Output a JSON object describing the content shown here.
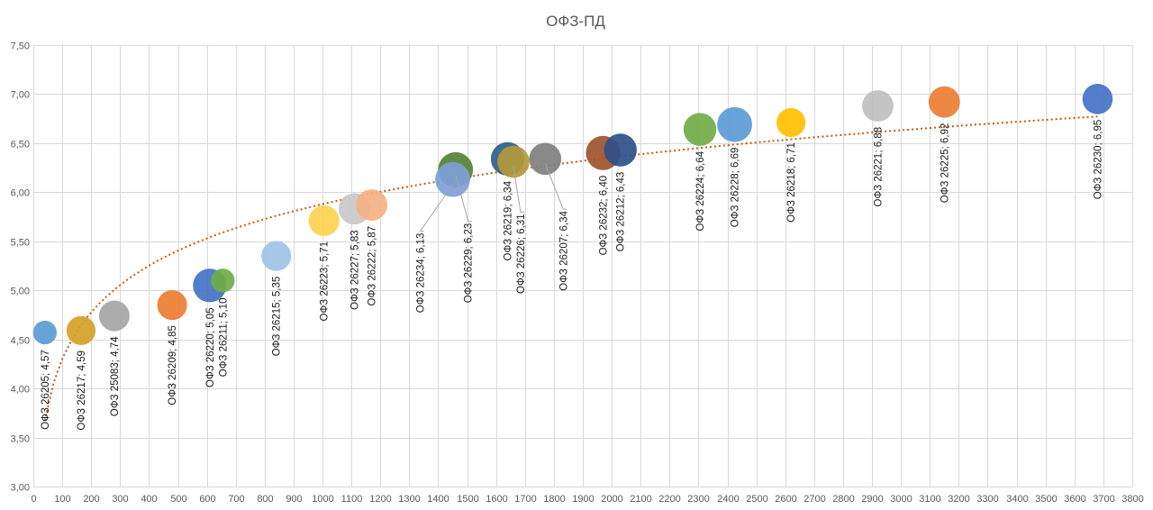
{
  "chart_data": {
    "type": "bubble",
    "title": "ОФЗ-ПД",
    "xlabel": "",
    "ylabel": "",
    "xlim": [
      0,
      3800
    ],
    "xstep": 100,
    "ylim": [
      3.0,
      7.5
    ],
    "ystep": 0.5,
    "grid": true,
    "trendline": {
      "type": "logarithmic",
      "color": "#c55a11",
      "style": "dotted"
    },
    "series": [
      {
        "name": "ОФЗ 26205",
        "x": 40,
        "y": 4.57,
        "size": 0.6,
        "color": "#5b9bd5",
        "label": "ОФЗ 26205; 4,57"
      },
      {
        "name": "ОФЗ 26217",
        "x": 165,
        "y": 4.59,
        "size": 0.9,
        "color": "#d4a22a",
        "label": "ОФЗ 26217; 4,59"
      },
      {
        "name": "ОФЗ 25083",
        "x": 280,
        "y": 4.74,
        "size": 1.0,
        "color": "#a5a5a5",
        "label": "ОФЗ 25083; 4,74"
      },
      {
        "name": "ОФЗ 26209",
        "x": 480,
        "y": 4.85,
        "size": 0.95,
        "color": "#ed7d31",
        "label": "ОФЗ 26209; 4,85"
      },
      {
        "name": "ОФЗ 26220",
        "x": 610,
        "y": 5.05,
        "size": 1.2,
        "color": "#4472c4",
        "label": "ОФЗ 26220; 5,05"
      },
      {
        "name": "ОФЗ 26211",
        "x": 655,
        "y": 5.1,
        "size": 0.6,
        "color": "#70ad47",
        "label": "ОФЗ 26211; 5,10"
      },
      {
        "name": "ОФЗ 26215",
        "x": 840,
        "y": 5.35,
        "size": 0.95,
        "color": "#9dc3e6",
        "label": "ОФЗ 26215; 5,35"
      },
      {
        "name": "ОФЗ 26223",
        "x": 1005,
        "y": 5.71,
        "size": 1.0,
        "color": "#ffd34f",
        "label": "ОФЗ 26223; 5,71"
      },
      {
        "name": "ОФЗ 26227",
        "x": 1110,
        "y": 5.83,
        "size": 1.05,
        "color": "#c9c9c9",
        "label": "ОФЗ 26227; 5,83"
      },
      {
        "name": "ОФЗ 26222",
        "x": 1170,
        "y": 5.87,
        "size": 1.05,
        "color": "#f4b183",
        "label": "ОФЗ 26222; 5,87"
      },
      {
        "name": "ОФЗ 26229",
        "x": 1460,
        "y": 6.23,
        "size": 1.3,
        "color": "#548235",
        "label": "ОФЗ 26229; 6,23"
      },
      {
        "name": "ОФЗ 26234",
        "x": 1450,
        "y": 6.13,
        "size": 1.3,
        "color": "#7f9fd9",
        "label": "ОФЗ 26234; 6,13"
      },
      {
        "name": "ОФЗ 26226",
        "x": 1660,
        "y": 6.31,
        "size": 1.1,
        "color": "#b39a3a",
        "label": "ОФЗ 26226; 6,31"
      },
      {
        "name": "ОФЗ 26219",
        "x": 1640,
        "y": 6.34,
        "size": 1.2,
        "color": "#2f5d8a",
        "label": "ОФЗ 26219; 6,34"
      },
      {
        "name": "ОФЗ 26207",
        "x": 1770,
        "y": 6.34,
        "size": 1.1,
        "color": "#7f7f7f",
        "label": "ОФЗ 26207; 6,34"
      },
      {
        "name": "ОФЗ 26232",
        "x": 1970,
        "y": 6.4,
        "size": 1.25,
        "color": "#a0522d",
        "label": "ОФЗ 26232; 6,40"
      },
      {
        "name": "ОФЗ 26212",
        "x": 2030,
        "y": 6.43,
        "size": 1.15,
        "color": "#2f4f8a",
        "label": "ОФЗ 26212; 6,43"
      },
      {
        "name": "ОФЗ 26224",
        "x": 2305,
        "y": 6.64,
        "size": 1.15,
        "color": "#70ad47",
        "label": "ОФЗ 26224; 6,64"
      },
      {
        "name": "ОФЗ 26228",
        "x": 2425,
        "y": 6.69,
        "size": 1.3,
        "color": "#5b9bd5",
        "label": "ОФЗ 26228; 6,69"
      },
      {
        "name": "ОФЗ 26218",
        "x": 2620,
        "y": 6.71,
        "size": 0.9,
        "color": "#ffc000",
        "label": "ОФЗ 26218; 6,71"
      },
      {
        "name": "ОФЗ 26221",
        "x": 2920,
        "y": 6.88,
        "size": 1.05,
        "color": "#bfbfbf",
        "label": "ОФЗ 26221; 6,88"
      },
      {
        "name": "ОФЗ 26225",
        "x": 3150,
        "y": 6.92,
        "size": 1.05,
        "color": "#ed7d31",
        "label": "ОФЗ 26225; 6,92"
      },
      {
        "name": "ОФЗ 26230",
        "x": 3680,
        "y": 6.95,
        "size": 0.98,
        "color": "#4472c4",
        "label": "ОФЗ 26230; 6,95"
      }
    ]
  }
}
